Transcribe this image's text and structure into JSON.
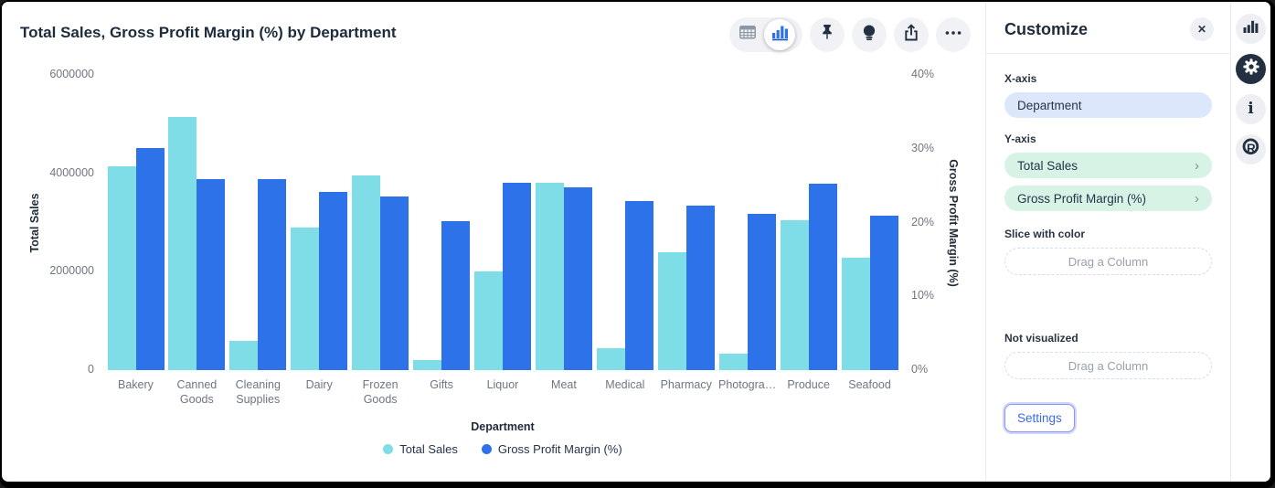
{
  "header": {
    "title": "Total Sales, Gross Profit Margin (%) by Department",
    "toolbar_icons": [
      "table-icon",
      "bar-chart-icon",
      "pin-icon",
      "lightbulb-icon",
      "share-icon",
      "ellipsis-icon"
    ]
  },
  "chart_data": {
    "type": "bar",
    "title": "Total Sales, Gross Profit Margin (%) by Department",
    "categories": [
      "Bakery",
      "Canned Goods",
      "Cleaning Supplies",
      "Dairy",
      "Frozen Goods",
      "Gifts",
      "Liquor",
      "Meat",
      "Medical",
      "Pharmacy",
      "Photogra…",
      "Produce",
      "Seafood"
    ],
    "series": [
      {
        "name": "Total Sales",
        "axis": "left",
        "color": "#7edde6",
        "values": [
          4150000,
          5150000,
          600000,
          2900000,
          3950000,
          200000,
          2000000,
          3800000,
          450000,
          2400000,
          330000,
          3050000,
          2280000
        ]
      },
      {
        "name": "Gross Profit Margin (%)",
        "axis": "right",
        "color": "#2e72e9",
        "values": [
          30.1,
          25.9,
          25.9,
          24.1,
          23.5,
          20.2,
          25.4,
          24.8,
          22.9,
          22.3,
          21.2,
          25.3,
          20.9
        ]
      }
    ],
    "left_axis": {
      "label": "Total Sales",
      "range": [
        0,
        6000000
      ],
      "ticks": [
        "0",
        "2000000",
        "4000000",
        "6000000"
      ]
    },
    "right_axis": {
      "label": "Gross Profit Margin (%)",
      "range": [
        0,
        40
      ],
      "ticks": [
        "0%",
        "10%",
        "20%",
        "30%",
        "40%"
      ]
    },
    "xlabel": "Department",
    "legend_position": "bottom",
    "grid": false
  },
  "panel": {
    "title": "Customize",
    "close_glyph": "✕",
    "chevron_glyph": "›",
    "x_axis_label": "X-axis",
    "x_axis_value": "Department",
    "y_axis_label": "Y-axis",
    "y_axis_values": [
      "Total Sales",
      "Gross Profit Margin (%)"
    ],
    "slice_label": "Slice with color",
    "slice_placeholder": "Drag a Column",
    "not_visualized_label": "Not visualized",
    "not_visualized_placeholder": "Drag a Column",
    "settings_label": "Settings"
  },
  "sidebar": {
    "icons": [
      "bar-chart-icon",
      "gear-icon",
      "info-icon",
      "r-logo-icon"
    ],
    "active_icon": "gear-icon"
  },
  "colors": {
    "series_cyan": "#7edde6",
    "series_blue": "#2e72e9",
    "pill_lavender": "#dde7fb",
    "pill_mint": "#d6f3e5",
    "settings_blue": "#3a6be8",
    "icon_dark": "#223042"
  }
}
